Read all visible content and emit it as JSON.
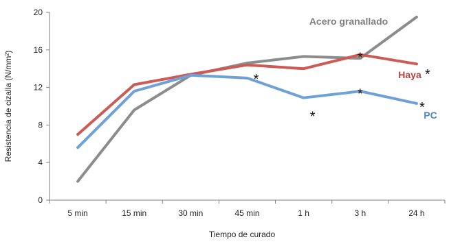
{
  "chart_data": {
    "type": "line",
    "title": "",
    "xlabel": "Tiempo de curado",
    "ylabel": "Resistencia de cizalla (N/mm²)",
    "categories": [
      "5 min",
      "15 min",
      "30 min",
      "45 min",
      "1 h",
      "3 h",
      "24 h"
    ],
    "ylim": [
      0,
      20
    ],
    "yticks": [
      0,
      4,
      8,
      12,
      16,
      20
    ],
    "grid": false,
    "legend": "inline labels",
    "series": [
      {
        "name": "Acero granallado",
        "color": "#8c8c8c",
        "label_color": "#7f7f7f",
        "values": [
          2.0,
          9.6,
          13.3,
          14.6,
          15.3,
          15.1,
          19.5
        ]
      },
      {
        "name": "Haya",
        "color": "#cc5a55",
        "label_color": "#b4403c",
        "values": [
          7.0,
          12.3,
          13.4,
          14.4,
          14.0,
          15.5,
          14.5
        ]
      },
      {
        "name": "PC",
        "color": "#6fa0d8",
        "label_color": "#4f86c6",
        "values": [
          5.6,
          11.6,
          13.3,
          13.0,
          10.9,
          11.6,
          10.3
        ]
      }
    ],
    "annotations": [
      {
        "text": "*",
        "category": "45 min",
        "value": 13.3
      },
      {
        "text": "*",
        "category": "1 h",
        "value": 9.3
      },
      {
        "text": "*",
        "category": "3 h",
        "value": 15.6
      },
      {
        "text": "*",
        "category": "3 h",
        "value": 11.7
      },
      {
        "text": "*",
        "category": "24 h",
        "value": 13.8
      },
      {
        "text": "*",
        "category": "24 h",
        "value": 10.3
      }
    ]
  }
}
